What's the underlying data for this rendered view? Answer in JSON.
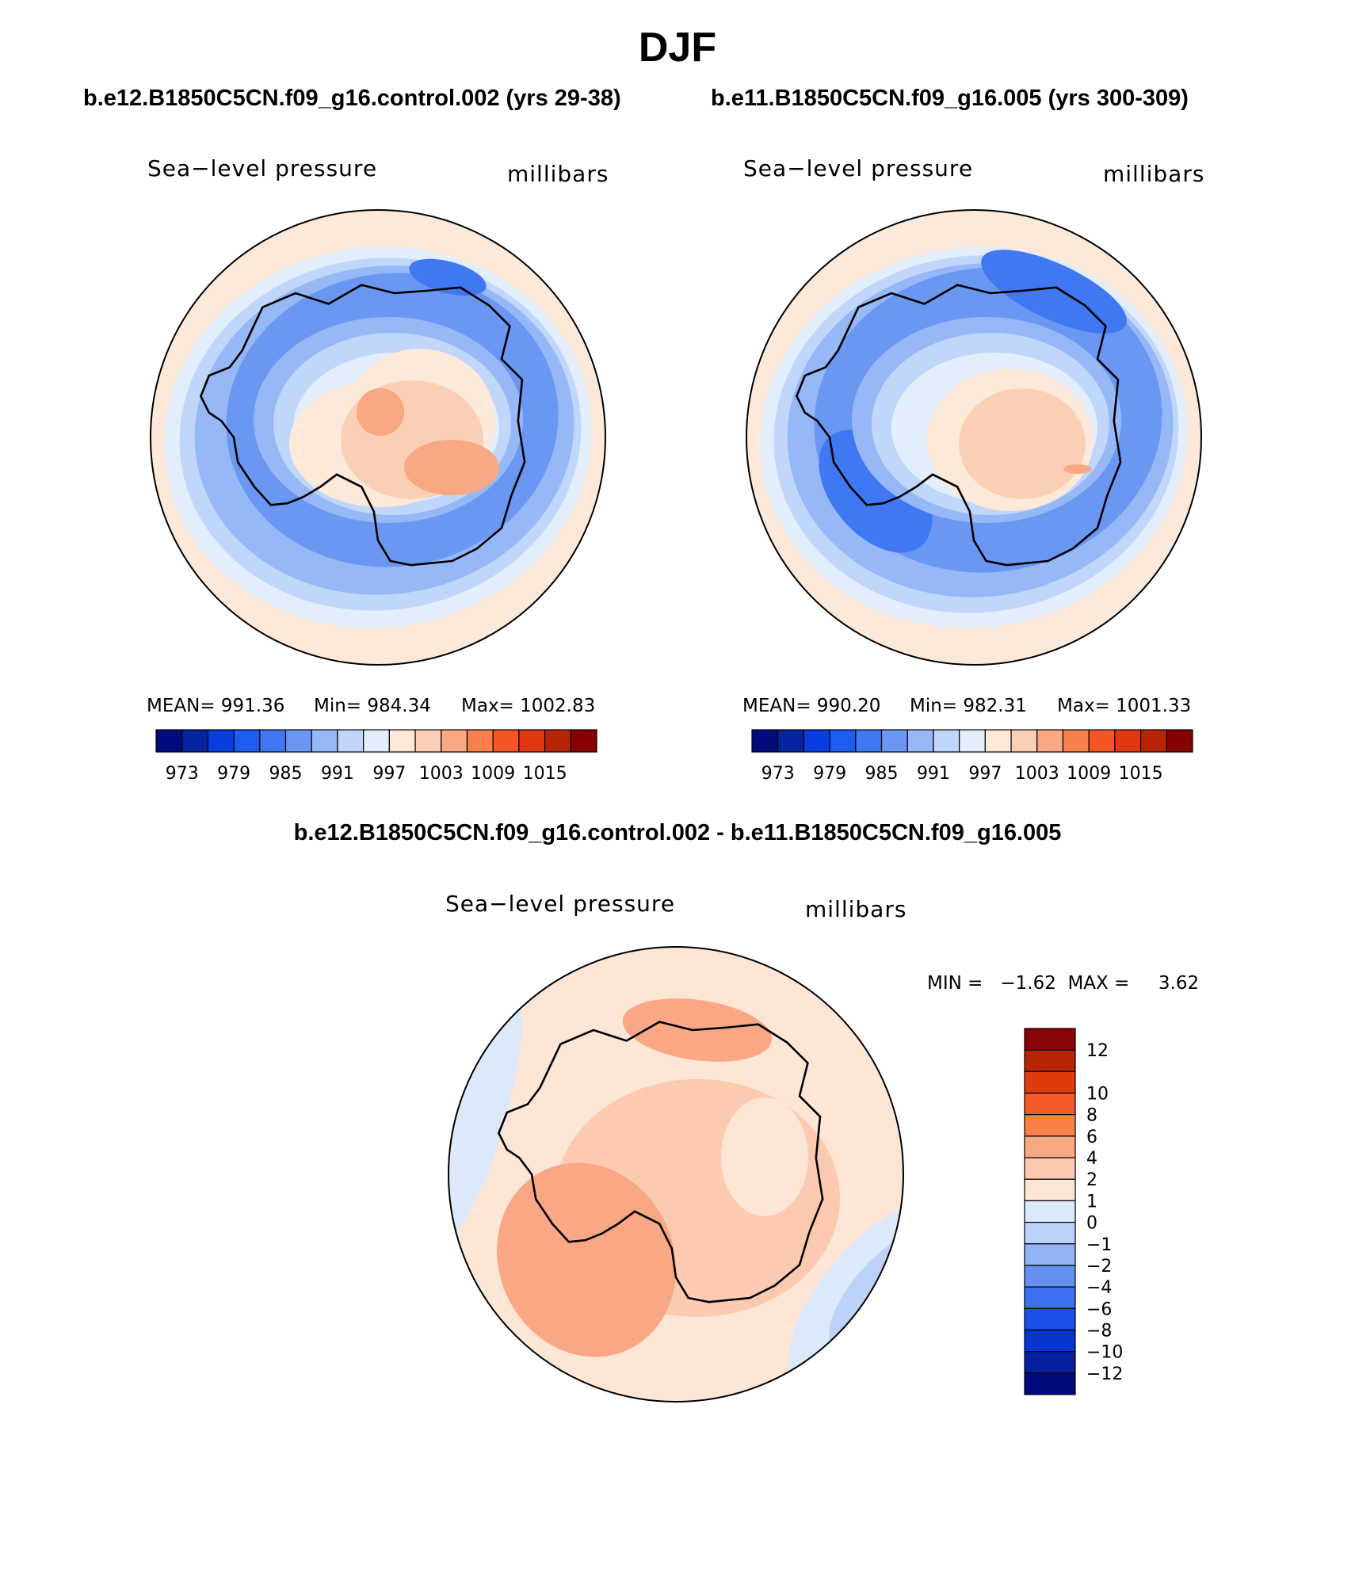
{
  "title": "DJF",
  "panels": [
    {
      "case": "b.e12.B1850C5CN.f09_g16.control.002 (yrs 29-38)",
      "variable": "Sea−level pressure",
      "units": "millibars",
      "stats": {
        "mean": "MEAN=  991.36",
        "min": "Min=  984.34",
        "max": "Max=  1002.83"
      }
    },
    {
      "case": "b.e11.B1850C5CN.f09_g16.005 (yrs 300-309)",
      "variable": "Sea−level pressure",
      "units": "millibars",
      "stats": {
        "mean": "MEAN=  990.20",
        "min": "Min=  982.31",
        "max": "Max=  1001.33"
      }
    }
  ],
  "difference": {
    "title": "b.e12.B1850C5CN.f09_g16.control.002 - b.e11.B1850C5CN.f09_g16.005",
    "variable": "Sea−level pressure",
    "units": "millibars",
    "stats": "MIN =   −1.62  MAX =     3.62"
  },
  "colorbar_abs": {
    "colors": [
      "#000c7d",
      "#0524a0",
      "#0a3de0",
      "#1d5cf0",
      "#3f78f2",
      "#6a97f2",
      "#97b8f7",
      "#c0d6fb",
      "#e2eefb",
      "#fde9d9",
      "#fbcfb6",
      "#f8a883",
      "#f8804f",
      "#f45525",
      "#e1380f",
      "#b72508",
      "#860004"
    ],
    "labels": [
      "973",
      "979",
      "985",
      "991",
      "997",
      "1003",
      "1009",
      "1015"
    ]
  },
  "colorbar_diff": {
    "colors_top_to_bottom": [
      "#8a0508",
      "#b92406",
      "#e03a0f",
      "#f45a25",
      "#f98048",
      "#f9a784",
      "#fbcab0",
      "#fde6d6",
      "#dbe9fa",
      "#bcd2fa",
      "#93b4f4",
      "#6690f0",
      "#3d70f2",
      "#1a4ee8",
      "#0835d0",
      "#061f9e",
      "#000a7b"
    ],
    "labels_top_to_bottom": [
      "12",
      "10",
      "8",
      "6",
      "4",
      "2",
      "1",
      "0",
      "−1",
      "−2",
      "−4",
      "−6",
      "−8",
      "−10",
      "−12"
    ]
  },
  "map_colors": {
    "l3": "#f8a883",
    "l2": "#fbcfb6",
    "l1": "#fde9d9",
    "b1": "#e2eefb",
    "b2": "#c0d6fb",
    "b3": "#97b8f7",
    "b4": "#6a97f2",
    "b5": "#3f78f2",
    "d1": "#fde6d6",
    "d2": "#fbcab0",
    "d3": "#f9a784",
    "n1": "#dbe9fa",
    "n2": "#bcd2fa"
  }
}
